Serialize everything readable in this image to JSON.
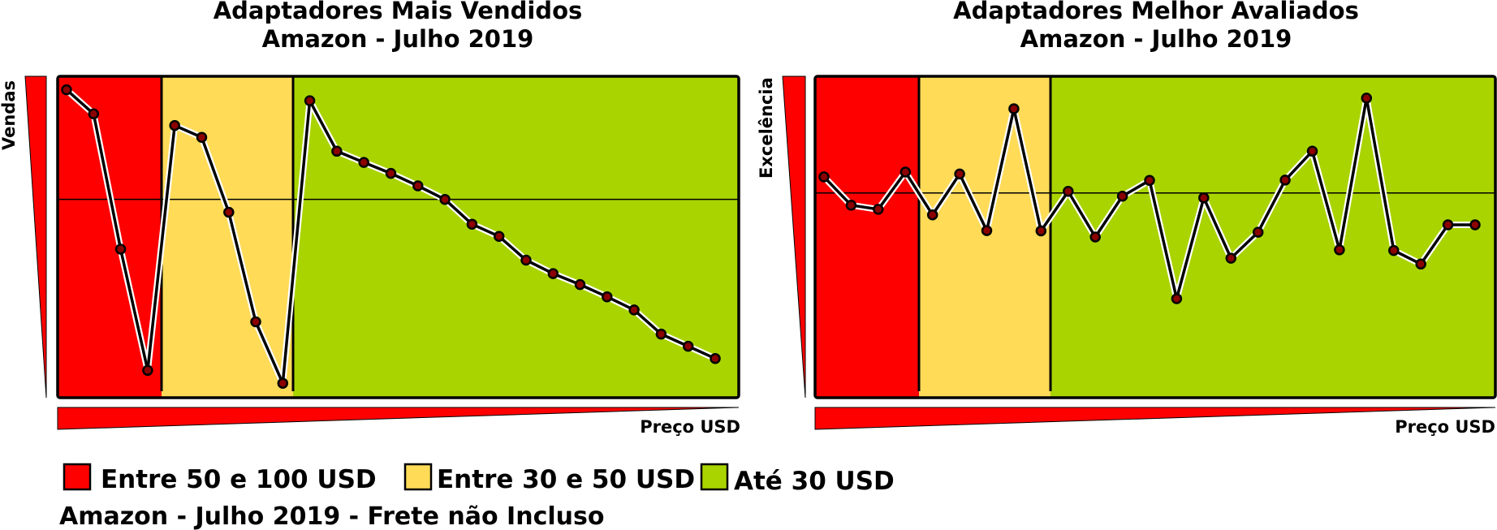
{
  "colors": {
    "red": "#ff0000",
    "yellow": "#ffdb58",
    "green": "#aad400",
    "line": "#000000",
    "halo": "#ffffff"
  },
  "legend": {
    "red": "Entre 50 e 100 USD",
    "yellow": "Entre 30 e 50 USD",
    "green": "Até 30 USD"
  },
  "footer": "Amazon - Julho 2019 - Frete não Incluso",
  "chart_data": [
    {
      "type": "line",
      "title": [
        "Adaptadores Mais Vendidos",
        "Amazon - Julho 2019"
      ],
      "xlabel": "Preço USD",
      "ylabel": "Vendas",
      "y_relative": [
        0.958,
        0.883,
        0.462,
        0.085,
        0.847,
        0.81,
        0.577,
        0.236,
        0.045,
        0.924,
        0.767,
        0.732,
        0.698,
        0.659,
        0.617,
        0.54,
        0.502,
        0.428,
        0.386,
        0.352,
        0.314,
        0.273,
        0.198,
        0.16,
        0.122
      ],
      "bands": [
        "red",
        "yellow",
        "green"
      ],
      "band_counts": [
        4,
        5,
        16
      ],
      "reference_line": 0.617,
      "grid": false
    },
    {
      "type": "line",
      "title": [
        "Adaptadores Melhor Avaliados",
        "Amazon - Julho 2019"
      ],
      "xlabel": "Preço USD",
      "ylabel": "Excelência",
      "y_relative": [
        0.687,
        0.599,
        0.586,
        0.702,
        0.569,
        0.696,
        0.52,
        0.899,
        0.519,
        0.642,
        0.5,
        0.627,
        0.676,
        0.308,
        0.622,
        0.434,
        0.515,
        0.677,
        0.767,
        0.46,
        0.932,
        0.458,
        0.416,
        0.538,
        0.538
      ],
      "bands": [
        "red",
        "yellow",
        "green"
      ],
      "band_counts": [
        4,
        5,
        16
      ],
      "reference_line": 0.637,
      "grid": false
    }
  ]
}
